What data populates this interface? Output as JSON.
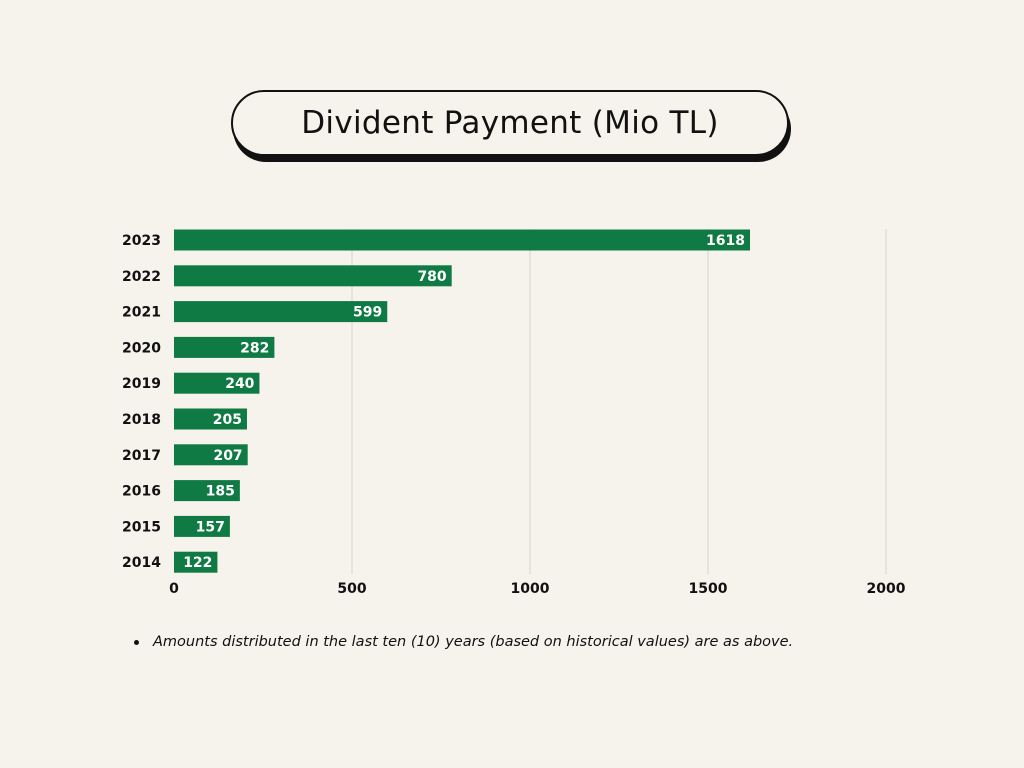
{
  "chart_data": {
    "type": "bar",
    "orientation": "horizontal",
    "title": "Divident Payment (Mio TL)",
    "categories": [
      "2023",
      "2022",
      "2021",
      "2020",
      "2019",
      "2018",
      "2017",
      "2016",
      "2015",
      "2014"
    ],
    "values": [
      1618,
      780,
      599,
      282,
      240,
      205,
      207,
      185,
      157,
      122
    ],
    "xlim": [
      0,
      2000
    ],
    "xticks": [
      "0",
      "500",
      "1000",
      "1500",
      "2000"
    ],
    "xlabel": "",
    "ylabel": "",
    "grid": true,
    "bar_color": "#107a45",
    "data_labels": true
  },
  "note": {
    "text": "Amounts distributed in the last ten (10) years (based on historical values) are as above."
  },
  "colors": {
    "background": "#f6f2ec",
    "bar": "#107a45",
    "grid": "#dcd8d2"
  }
}
